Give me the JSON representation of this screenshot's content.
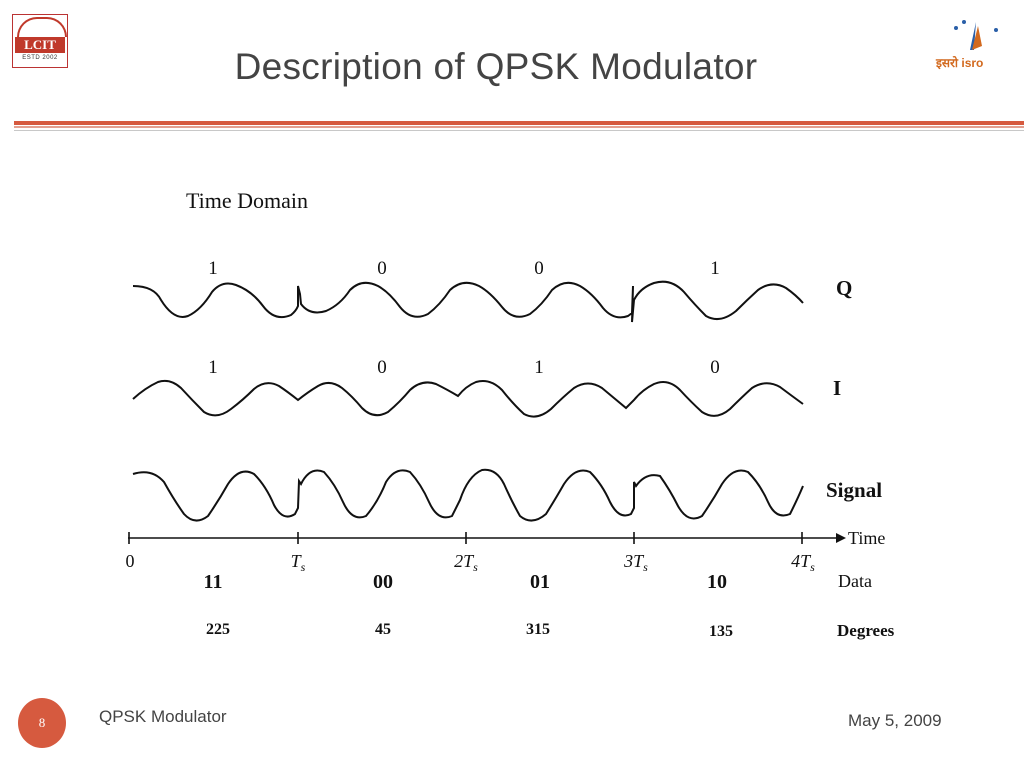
{
  "header": {
    "title": "Description of QPSK Modulator",
    "left_logo": {
      "text": "LCIT",
      "est": "ESTD 2002"
    },
    "right_logo": {
      "text": "इसरो isro"
    }
  },
  "diagram": {
    "heading": "Time Domain",
    "q_bits": [
      "1",
      "0",
      "0",
      "1"
    ],
    "i_bits": [
      "1",
      "0",
      "1",
      "0"
    ],
    "row_labels": {
      "q": "Q",
      "i": "I",
      "signal": "Signal"
    },
    "axis": {
      "time_label": "Time",
      "ticks": [
        "0",
        "T_s",
        "2T_s",
        "3T_s",
        "4T_s"
      ]
    },
    "data_label": "Data",
    "data_values": [
      "11",
      "00",
      "01",
      "10"
    ],
    "degrees_label": "Degrees",
    "degrees_values": [
      "225",
      "45",
      "315",
      "135"
    ]
  },
  "footer": {
    "page_number": "8",
    "left_text": "QPSK Modulator",
    "right_text": "May 5, 2009"
  }
}
